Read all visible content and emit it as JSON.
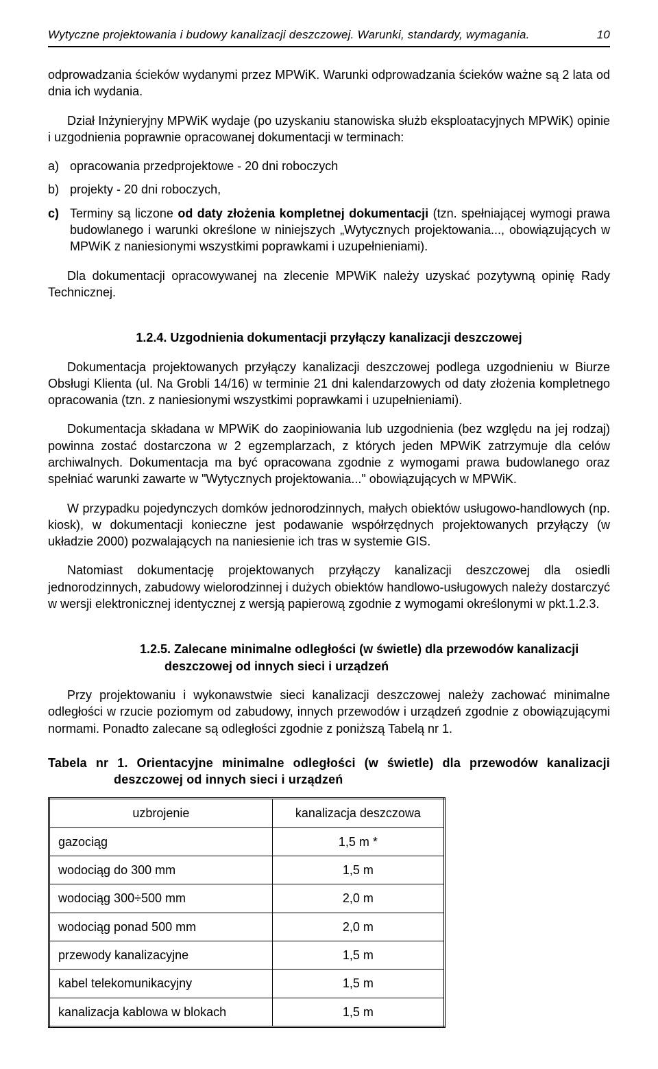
{
  "header": {
    "title": "Wytyczne projektowania i budowy kanalizacji deszczowej. Warunki, standardy, wymagania.",
    "page_number": "10"
  },
  "intro_para": "odprowadzania ścieków wydanymi przez MPWiK. Warunki odprowadzania ścieków ważne są 2 lata od dnia ich wydania.",
  "para2": "Dział Inżynieryjny MPWiK wydaje (po uzyskaniu stanowiska służb eksploatacyjnych MPWiK) opinie i uzgodnienia poprawnie opracowanej dokumentacji w terminach:",
  "list_items": {
    "a_marker": "a)",
    "a_text": "opracowania przedprojektowe - 20 dni roboczych",
    "b_marker": "b)",
    "b_text": "projekty - 20 dni roboczych,",
    "c_marker": "c)",
    "c_prefix": "Terminy są liczone ",
    "c_bold": "od daty złożenia kompletnej dokumentacji",
    "c_rest": " (tzn. spełniającej wymogi prawa budowlanego i warunki określone w niniejszych „Wytycznych projektowania..., obowiązujących w MPWiK z naniesionymi wszystkimi poprawkami i uzupełnieniami)."
  },
  "para3": "Dla dokumentacji opracowywanej na zlecenie MPWiK należy uzyskać pozytywną opinię Rady Technicznej.",
  "section_124": {
    "heading": "1.2.4. Uzgodnienia dokumentacji przyłączy kanalizacji deszczowej",
    "p1": "Dokumentacja projektowanych przyłączy kanalizacji deszczowej podlega uzgodnieniu w Biurze Obsługi Klienta (ul. Na Grobli 14/16) w terminie 21 dni kalendarzowych od daty złożenia kompletnego opracowania (tzn. z naniesionymi wszystkimi poprawkami i uzupełnieniami).",
    "p2": "Dokumentacja składana w MPWiK do zaopiniowania lub uzgodnienia (bez względu na jej rodzaj) powinna zostać dostarczona w 2 egzemplarzach, z których jeden MPWiK zatrzymuje dla celów archiwalnych. Dokumentacja ma być opracowana zgodnie z wymogami prawa budowlanego oraz spełniać warunki zawarte w \"Wytycznych projektowania...\" obowiązujących w MPWiK.",
    "p3": "W przypadku pojedynczych domków jednorodzinnych, małych obiektów usługowo-handlowych (np. kiosk), w dokumentacji konieczne jest podawanie współrzędnych projektowanych przyłączy (w układzie 2000) pozwalających na naniesienie ich tras w systemie GIS.",
    "p4": "Natomiast dokumentację projektowanych przyłączy kanalizacji deszczowej dla osiedli jednorodzinnych, zabudowy wielorodzinnej i dużych obiektów handlowo-usługowych należy dostarczyć w wersji elektronicznej identycznej z wersją papierową zgodnie z wymogami określonymi w pkt.1.2.3."
  },
  "section_125": {
    "heading": "1.2.5. Zalecane minimalne odległości (w świetle) dla przewodów kanalizacji deszczowej od innych sieci i urządzeń",
    "p1": "Przy projektowaniu i wykonawstwie sieci kanalizacji deszczowej należy zachować minimalne odległości w rzucie poziomym od zabudowy, innych przewodów i urządzeń zgodnie z obowiązującymi normami. Ponadto zalecane są odległości zgodnie z poniższą Tabelą nr 1."
  },
  "table": {
    "caption": "Tabela nr 1. Orientacyjne minimalne odległości (w świetle) dla przewodów  kanalizacji deszczowej od innych sieci i urządzeń",
    "col1_header": "uzbrojenie",
    "col2_header": "kanalizacja deszczowa",
    "rows": [
      {
        "name": "gazociąg",
        "value": "1,5 m *"
      },
      {
        "name": "wodociąg do 300 mm",
        "value": "1,5 m"
      },
      {
        "name": "wodociąg 300÷500 mm",
        "value": "2,0 m"
      },
      {
        "name": "wodociąg ponad 500 mm",
        "value": "2,0 m"
      },
      {
        "name": "przewody kanalizacyjne",
        "value": "1,5 m"
      },
      {
        "name": "kabel telekomunikacyjny",
        "value": "1,5 m"
      },
      {
        "name": "kanalizacja kablowa w blokach",
        "value": "1,5 m"
      }
    ]
  }
}
